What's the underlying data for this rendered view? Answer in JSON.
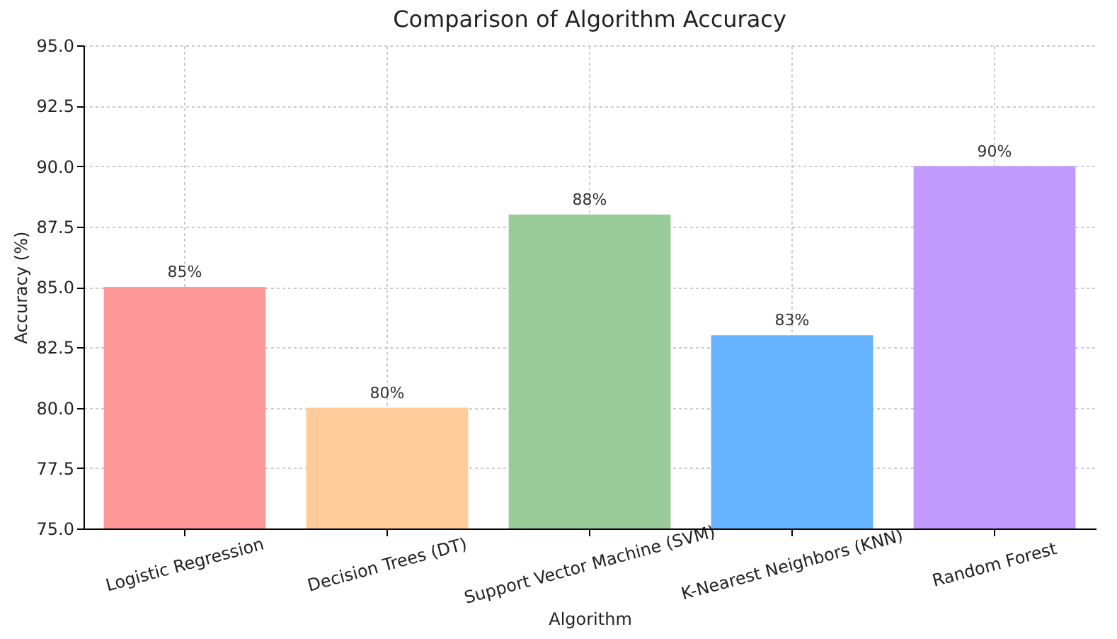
{
  "chart_data": {
    "type": "bar",
    "title": "Comparison of Algorithm Accuracy",
    "xlabel": "Algorithm",
    "ylabel": "Accuracy (%)",
    "categories": [
      "Logistic Regression",
      "Decision Trees (DT)",
      "Support Vector Machine (SVM)",
      "K-Nearest Neighbors (KNN)",
      "Random Forest"
    ],
    "values": [
      85,
      80,
      88,
      83,
      90
    ],
    "colors": [
      "#ff9999",
      "#ffcc99",
      "#99cc99",
      "#66b3ff",
      "#c299ff"
    ],
    "value_labels": [
      "85%",
      "80%",
      "88%",
      "83%",
      "90%"
    ],
    "ylim": [
      75,
      95
    ],
    "yticks": [
      {
        "value": 75,
        "label": "75.0"
      },
      {
        "value": 77.5,
        "label": "77.5"
      },
      {
        "value": 80,
        "label": "80.0"
      },
      {
        "value": 82.5,
        "label": "82.5"
      },
      {
        "value": 85,
        "label": "85.0"
      },
      {
        "value": 87.5,
        "label": "87.5"
      },
      {
        "value": 90,
        "label": "90.0"
      },
      {
        "value": 92.5,
        "label": "92.5"
      },
      {
        "value": 95,
        "label": "95.0"
      }
    ],
    "grid": true
  }
}
